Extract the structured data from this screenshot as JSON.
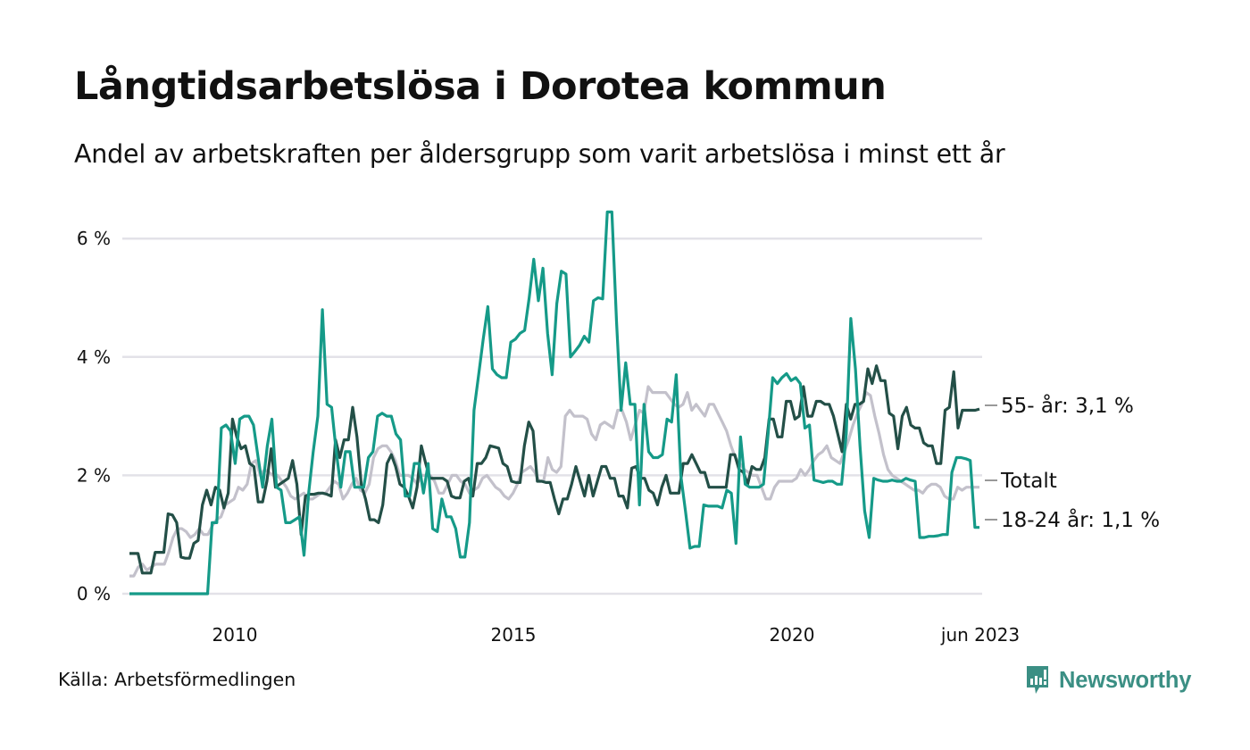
{
  "header": {
    "title": "Långtidsarbetslösa i Dorotea kommun",
    "subtitle": "Andel av arbetskraften per åldersgrupp som varit arbetslösa i minst ett år"
  },
  "footer": {
    "source": "Källa: Arbetsförmedlingen",
    "brand": "Newsworthy",
    "brand_icon": "bar-chart-speech-bubble-icon",
    "brand_color": "#3b8f84"
  },
  "chart_data": {
    "type": "line",
    "title": "Långtidsarbetslösa i Dorotea kommun",
    "subtitle": "Andel av arbetskraften per åldersgrupp som varit arbetslösa i minst ett år",
    "xlabel": "",
    "ylabel": "",
    "x_start": "2008-01",
    "x_end": "2023-06",
    "x_frequency": "monthly",
    "x_ticks": [
      {
        "value": 2010,
        "label": "2010"
      },
      {
        "value": 2015,
        "label": "2015"
      },
      {
        "value": 2020,
        "label": "2020"
      },
      {
        "value": 2023.42,
        "label": "jun 2023"
      }
    ],
    "y_ticks": [
      {
        "value": 0,
        "label": "0 %"
      },
      {
        "value": 2,
        "label": "2 %"
      },
      {
        "value": 4,
        "label": "4 %"
      },
      {
        "value": 6,
        "label": "6 %"
      }
    ],
    "ylim": [
      0,
      6.6
    ],
    "grid": "horizontal",
    "unit": "%",
    "series": [
      {
        "name": "Totalt",
        "end_label": "Totalt",
        "color": "#c3c1cb",
        "values": [
          0.3,
          0.3,
          0.45,
          0.5,
          0.4,
          0.45,
          0.5,
          0.5,
          0.5,
          0.7,
          0.95,
          1.1,
          1.1,
          1.05,
          0.95,
          1.0,
          1.1,
          1.0,
          1.0,
          1.15,
          1.25,
          1.3,
          1.5,
          1.55,
          1.6,
          1.8,
          1.75,
          1.85,
          2.2,
          2.25,
          2.0,
          2.1,
          2.05,
          2.0,
          2.0,
          1.9,
          1.8,
          1.65,
          1.6,
          1.65,
          1.7,
          1.6,
          1.6,
          1.65,
          1.7,
          1.7,
          1.8,
          1.9,
          1.85,
          1.6,
          1.7,
          1.85,
          1.95,
          1.75,
          1.7,
          1.85,
          2.3,
          2.45,
          2.5,
          2.5,
          2.4,
          2.25,
          2.0,
          2.0,
          2.0,
          1.95,
          1.85,
          2.0,
          2.0,
          2.0,
          1.9,
          1.7,
          1.7,
          1.85,
          2.0,
          2.0,
          1.9,
          1.85,
          1.7,
          1.75,
          1.8,
          1.95,
          2.0,
          1.9,
          1.8,
          1.75,
          1.65,
          1.6,
          1.7,
          1.85,
          2.05,
          2.1,
          2.15,
          2.05,
          1.9,
          1.9,
          2.3,
          2.1,
          2.05,
          2.15,
          3.0,
          3.1,
          3.0,
          3.0,
          3.0,
          2.95,
          2.7,
          2.6,
          2.85,
          2.9,
          2.85,
          2.8,
          3.1,
          3.1,
          2.9,
          2.6,
          2.85,
          3.1,
          3.05,
          3.5,
          3.4,
          3.4,
          3.4,
          3.4,
          3.3,
          3.2,
          3.15,
          3.2,
          3.4,
          3.1,
          3.2,
          3.1,
          3.0,
          3.2,
          3.2,
          3.05,
          2.9,
          2.75,
          2.5,
          2.3,
          2.2,
          2.1,
          2.05,
          2.0,
          2.0,
          1.8,
          1.6,
          1.6,
          1.8,
          1.9,
          1.9,
          1.9,
          1.9,
          1.95,
          2.1,
          2.0,
          2.1,
          2.25,
          2.35,
          2.4,
          2.5,
          2.3,
          2.25,
          2.2,
          2.4,
          2.6,
          2.85,
          3.05,
          3.2,
          3.4,
          3.35,
          3.0,
          2.7,
          2.35,
          2.1,
          2.0,
          1.95,
          1.9,
          1.85,
          1.8,
          1.75,
          1.75,
          1.7,
          1.8,
          1.85,
          1.85,
          1.8,
          1.65,
          1.6,
          1.6,
          1.8,
          1.75,
          1.8,
          1.8,
          1.8,
          1.8
        ]
      },
      {
        "name": "55- år",
        "end_label": "55- år: 3,1 %",
        "color": "#234f47",
        "values": [
          0.68,
          0.68,
          0.68,
          0.35,
          0.35,
          0.35,
          0.7,
          0.7,
          0.7,
          1.35,
          1.33,
          1.2,
          0.62,
          0.6,
          0.6,
          0.85,
          0.9,
          1.5,
          1.75,
          1.5,
          1.8,
          1.75,
          1.45,
          1.7,
          2.95,
          2.65,
          2.45,
          2.5,
          2.2,
          2.15,
          1.55,
          1.55,
          1.9,
          2.45,
          1.8,
          1.85,
          1.9,
          1.95,
          2.25,
          1.85,
          1.0,
          1.65,
          1.68,
          1.68,
          1.7,
          1.7,
          1.68,
          1.65,
          2.6,
          2.3,
          2.6,
          2.6,
          3.15,
          2.65,
          1.85,
          1.6,
          1.25,
          1.25,
          1.2,
          1.5,
          2.2,
          2.35,
          2.15,
          1.85,
          1.8,
          1.65,
          1.45,
          1.8,
          2.5,
          2.2,
          1.95,
          1.95,
          1.95,
          1.95,
          1.9,
          1.65,
          1.62,
          1.62,
          1.9,
          1.95,
          1.65,
          2.2,
          2.2,
          2.3,
          2.5,
          2.48,
          2.46,
          2.2,
          2.15,
          1.9,
          1.88,
          1.88,
          2.5,
          2.9,
          2.75,
          1.9,
          1.9,
          1.88,
          1.88,
          1.6,
          1.35,
          1.6,
          1.6,
          1.85,
          2.15,
          1.9,
          1.65,
          2.0,
          1.65,
          1.9,
          2.15,
          2.15,
          1.95,
          1.95,
          1.65,
          1.65,
          1.45,
          2.12,
          2.15,
          1.95,
          1.95,
          1.75,
          1.7,
          1.5,
          1.8,
          2.0,
          1.7,
          1.7,
          1.7,
          2.2,
          2.2,
          2.35,
          2.2,
          2.05,
          2.05,
          1.8,
          1.8,
          1.8,
          1.8,
          1.8,
          2.35,
          2.35,
          2.1,
          2.05,
          1.85,
          2.15,
          2.1,
          2.1,
          2.3,
          2.95,
          2.95,
          2.65,
          2.65,
          3.25,
          3.25,
          2.95,
          3.0,
          3.5,
          3.0,
          3.0,
          3.25,
          3.25,
          3.2,
          3.2,
          3.0,
          2.7,
          2.4,
          3.2,
          2.95,
          3.2,
          3.2,
          3.25,
          3.8,
          3.55,
          3.85,
          3.6,
          3.6,
          3.05,
          3.0,
          2.45,
          3.0,
          3.15,
          2.85,
          2.8,
          2.8,
          2.55,
          2.5,
          2.5,
          2.2,
          2.2,
          3.1,
          3.15,
          3.75,
          2.8,
          3.1,
          3.1,
          3.1,
          3.1,
          3.12
        ]
      },
      {
        "name": "18-24 år",
        "end_label": "18-24 år: 1,1 %",
        "color": "#159a88",
        "values": [
          0,
          0,
          0,
          0,
          0,
          0,
          0,
          0,
          0,
          0,
          0,
          0,
          0,
          0,
          0,
          0,
          0,
          0,
          1.2,
          1.2,
          2.8,
          2.85,
          2.75,
          2.2,
          2.95,
          3.0,
          3.0,
          2.85,
          2.3,
          1.8,
          2.5,
          2.95,
          1.8,
          1.75,
          1.2,
          1.2,
          1.25,
          1.3,
          0.65,
          1.7,
          2.4,
          3.0,
          4.8,
          3.2,
          3.15,
          2.4,
          1.8,
          2.4,
          2.4,
          1.8,
          1.8,
          1.8,
          2.3,
          2.4,
          3.0,
          3.05,
          3.0,
          3.0,
          2.7,
          2.6,
          1.65,
          1.65,
          2.2,
          2.2,
          1.7,
          2.2,
          1.1,
          1.05,
          1.6,
          1.3,
          1.3,
          1.1,
          0.62,
          0.62,
          1.2,
          3.1,
          3.7,
          4.3,
          4.85,
          3.8,
          3.7,
          3.65,
          3.65,
          4.25,
          4.3,
          4.4,
          4.45,
          5.0,
          5.65,
          4.95,
          5.5,
          4.4,
          3.7,
          4.9,
          5.45,
          5.4,
          4.0,
          4.1,
          4.2,
          4.35,
          4.25,
          4.95,
          5.0,
          4.98,
          6.45,
          6.45,
          4.6,
          3.1,
          3.9,
          3.2,
          3.2,
          1.5,
          3.2,
          2.4,
          2.3,
          2.3,
          2.35,
          2.95,
          2.9,
          3.7,
          2.0,
          1.4,
          0.77,
          0.8,
          0.8,
          1.5,
          1.48,
          1.48,
          1.48,
          1.45,
          1.75,
          1.7,
          0.85,
          2.65,
          1.85,
          1.8,
          1.8,
          1.8,
          1.85,
          2.7,
          3.65,
          3.55,
          3.65,
          3.72,
          3.6,
          3.65,
          3.55,
          2.8,
          2.85,
          1.92,
          1.9,
          1.88,
          1.9,
          1.9,
          1.85,
          1.85,
          2.7,
          4.65,
          3.8,
          2.5,
          1.4,
          0.95,
          1.95,
          1.92,
          1.9,
          1.9,
          1.92,
          1.9,
          1.9,
          1.95,
          1.92,
          1.9,
          0.95,
          0.95,
          0.97,
          0.97,
          0.98,
          1.0,
          1.0,
          2.05,
          2.3,
          2.3,
          2.28,
          2.25,
          1.12,
          1.12
        ]
      }
    ]
  }
}
